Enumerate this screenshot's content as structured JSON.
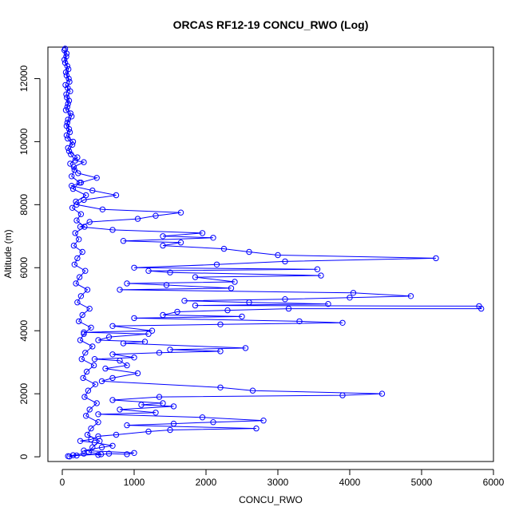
{
  "chart_data": {
    "type": "scatter",
    "title": "ORCAS RF12-19 CONCU_RWO (Log)",
    "xlabel": "CONCU_RWO",
    "ylabel": "Altitude (m)",
    "xlim": [
      -200,
      6000
    ],
    "ylim": [
      -150,
      13000
    ],
    "xticks": [
      0,
      1000,
      2000,
      3000,
      4000,
      5000,
      6000
    ],
    "yticks": [
      0,
      2000,
      4000,
      6000,
      8000,
      10000,
      12000
    ],
    "grid": false,
    "legend": "none",
    "color": "#0000ff",
    "marker": "open-circle",
    "connected": true,
    "series": [
      {
        "points": [
          [
            40,
            12950
          ],
          [
            60,
            12800
          ],
          [
            30,
            12600
          ],
          [
            70,
            12400
          ],
          [
            50,
            12200
          ],
          [
            90,
            12000
          ],
          [
            45,
            11800
          ],
          [
            110,
            11600
          ],
          [
            65,
            11400
          ],
          [
            80,
            11200
          ],
          [
            50,
            11000
          ],
          [
            130,
            10800
          ],
          [
            70,
            10600
          ],
          [
            95,
            10400
          ],
          [
            60,
            10200
          ],
          [
            150,
            10000
          ],
          [
            80,
            9800
          ],
          [
            120,
            9600
          ],
          [
            180,
            9400
          ],
          [
            300,
            9350
          ],
          [
            160,
            9200
          ],
          [
            220,
            9000
          ],
          [
            480,
            8850
          ],
          [
            260,
            8700
          ],
          [
            130,
            8600
          ],
          [
            420,
            8450
          ],
          [
            750,
            8300
          ],
          [
            300,
            8150
          ],
          [
            200,
            8000
          ],
          [
            560,
            7850
          ],
          [
            1650,
            7750
          ],
          [
            1300,
            7650
          ],
          [
            1050,
            7550
          ],
          [
            380,
            7450
          ],
          [
            250,
            7300
          ],
          [
            700,
            7200
          ],
          [
            1950,
            7100
          ],
          [
            1400,
            7000
          ],
          [
            2100,
            6950
          ],
          [
            850,
            6850
          ],
          [
            1650,
            6800
          ],
          [
            1400,
            6700
          ],
          [
            2250,
            6600
          ],
          [
            2600,
            6500
          ],
          [
            3000,
            6400
          ],
          [
            5200,
            6300
          ],
          [
            3100,
            6200
          ],
          [
            2150,
            6100
          ],
          [
            1000,
            6000
          ],
          [
            3550,
            5950
          ],
          [
            1200,
            5900
          ],
          [
            1500,
            5850
          ],
          [
            3600,
            5750
          ],
          [
            1850,
            5700
          ],
          [
            2400,
            5550
          ],
          [
            900,
            5500
          ],
          [
            1450,
            5450
          ],
          [
            2350,
            5350
          ],
          [
            800,
            5300
          ],
          [
            4050,
            5200
          ],
          [
            4850,
            5100
          ],
          [
            4000,
            5050
          ],
          [
            3100,
            5000
          ],
          [
            1700,
            4950
          ],
          [
            2600,
            4900
          ],
          [
            3700,
            4850
          ],
          [
            1850,
            4800
          ],
          [
            5800,
            4780
          ],
          [
            5830,
            4700
          ],
          [
            3150,
            4700
          ],
          [
            2300,
            4650
          ],
          [
            1600,
            4600
          ],
          [
            1400,
            4500
          ],
          [
            2500,
            4450
          ],
          [
            1000,
            4400
          ],
          [
            3300,
            4300
          ],
          [
            3900,
            4250
          ],
          [
            2200,
            4200
          ],
          [
            700,
            4150
          ],
          [
            1250,
            4000
          ],
          [
            300,
            3950
          ],
          [
            1200,
            3900
          ],
          [
            650,
            3800
          ],
          [
            500,
            3700
          ],
          [
            1150,
            3650
          ],
          [
            850,
            3600
          ],
          [
            2550,
            3450
          ],
          [
            1500,
            3400
          ],
          [
            2200,
            3350
          ],
          [
            1350,
            3300
          ],
          [
            700,
            3250
          ],
          [
            1000,
            3150
          ],
          [
            450,
            3100
          ],
          [
            800,
            3050
          ],
          [
            900,
            2900
          ],
          [
            600,
            2800
          ],
          [
            1050,
            2650
          ],
          [
            700,
            2500
          ],
          [
            550,
            2400
          ],
          [
            2200,
            2200
          ],
          [
            2650,
            2100
          ],
          [
            4450,
            2000
          ],
          [
            3900,
            1950
          ],
          [
            1350,
            1900
          ],
          [
            700,
            1800
          ],
          [
            1400,
            1700
          ],
          [
            1100,
            1650
          ],
          [
            1550,
            1600
          ],
          [
            800,
            1500
          ],
          [
            1300,
            1400
          ],
          [
            500,
            1350
          ],
          [
            1950,
            1250
          ],
          [
            2800,
            1150
          ],
          [
            2100,
            1100
          ],
          [
            1550,
            1050
          ],
          [
            900,
            1000
          ],
          [
            2700,
            900
          ],
          [
            1500,
            850
          ],
          [
            1200,
            800
          ],
          [
            750,
            700
          ],
          [
            500,
            650
          ],
          [
            400,
            550
          ],
          [
            250,
            500
          ],
          [
            450,
            450
          ],
          [
            700,
            350
          ],
          [
            550,
            300
          ],
          [
            300,
            200
          ],
          [
            1000,
            120
          ],
          [
            900,
            80
          ],
          [
            650,
            100
          ],
          [
            500,
            60
          ],
          [
            300,
            100
          ],
          [
            150,
            50
          ],
          [
            80,
            20
          ]
        ]
      },
      {
        "points": [
          [
            30,
            12900
          ],
          [
            55,
            12700
          ],
          [
            40,
            12500
          ],
          [
            85,
            12300
          ],
          [
            60,
            12100
          ],
          [
            100,
            11900
          ],
          [
            75,
            11700
          ],
          [
            55,
            11500
          ],
          [
            95,
            11300
          ],
          [
            70,
            11100
          ],
          [
            115,
            10900
          ],
          [
            80,
            10700
          ],
          [
            60,
            10500
          ],
          [
            105,
            10300
          ],
          [
            75,
            10100
          ],
          [
            140,
            9900
          ],
          [
            95,
            9700
          ],
          [
            210,
            9500
          ],
          [
            110,
            9300
          ],
          [
            170,
            9100
          ],
          [
            130,
            8900
          ],
          [
            240,
            8700
          ],
          [
            150,
            8500
          ],
          [
            330,
            8300
          ],
          [
            190,
            8100
          ],
          [
            140,
            7900
          ],
          [
            260,
            7700
          ],
          [
            200,
            7500
          ],
          [
            310,
            7300
          ],
          [
            180,
            7100
          ],
          [
            230,
            6900
          ],
          [
            160,
            6700
          ],
          [
            280,
            6500
          ],
          [
            210,
            6300
          ],
          [
            170,
            6100
          ],
          [
            320,
            5900
          ],
          [
            240,
            5700
          ],
          [
            190,
            5500
          ],
          [
            350,
            5300
          ],
          [
            260,
            5100
          ],
          [
            210,
            4900
          ],
          [
            380,
            4700
          ],
          [
            280,
            4500
          ],
          [
            230,
            4300
          ],
          [
            400,
            4100
          ],
          [
            300,
            3900
          ],
          [
            250,
            3700
          ],
          [
            420,
            3500
          ],
          [
            320,
            3300
          ],
          [
            270,
            3100
          ],
          [
            440,
            2900
          ],
          [
            340,
            2700
          ],
          [
            290,
            2500
          ],
          [
            460,
            2300
          ],
          [
            360,
            2100
          ],
          [
            310,
            1900
          ],
          [
            480,
            1700
          ],
          [
            380,
            1500
          ],
          [
            330,
            1300
          ],
          [
            500,
            1100
          ],
          [
            400,
            900
          ],
          [
            350,
            700
          ],
          [
            520,
            500
          ],
          [
            420,
            300
          ],
          [
            370,
            150
          ],
          [
            540,
            80
          ],
          [
            200,
            40
          ],
          [
            100,
            10
          ]
        ]
      }
    ]
  }
}
